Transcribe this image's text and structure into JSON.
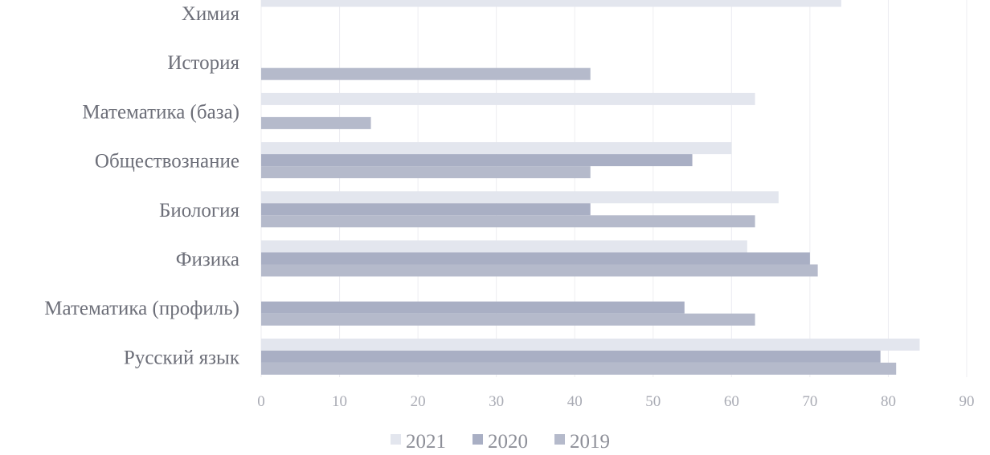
{
  "chart_data": {
    "type": "bar",
    "orientation": "horizontal",
    "categories": [
      "Химия",
      "История",
      "Математика (база)",
      "Обществознание",
      "Биология",
      "Физика",
      "Математика (профиль)",
      "Русский язык"
    ],
    "series": [
      {
        "name": "2021",
        "color": "#e3e6ee",
        "values": [
          74,
          null,
          63,
          60,
          66,
          62,
          null,
          84
        ]
      },
      {
        "name": "2020",
        "color": "#a9afc4",
        "values": [
          null,
          null,
          null,
          55,
          42,
          70,
          54,
          79
        ]
      },
      {
        "name": "2019",
        "color": "#b5bacb",
        "values": [
          null,
          42,
          14,
          42,
          63,
          71,
          63,
          81
        ]
      }
    ],
    "xlim": [
      0,
      90
    ],
    "x_ticks": [
      "0",
      "10",
      "20",
      "30",
      "40",
      "50",
      "60",
      "70",
      "80",
      "90"
    ],
    "grid": "vertical",
    "legend_position": "bottom"
  }
}
